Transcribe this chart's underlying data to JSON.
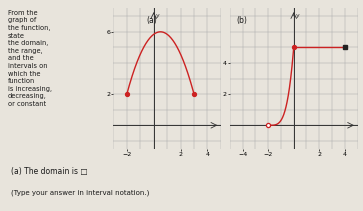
{
  "background_color": "#e8e4dc",
  "text_color": "#1a1a1a",
  "graph_a": {
    "label": "(a)",
    "endpoint_x": [
      -2,
      3
    ],
    "endpoint_y": [
      2,
      2
    ],
    "vertex_x": 0.5,
    "vertex_y": 6.0,
    "xlim": [
      -3,
      5
    ],
    "ylim": [
      -1.5,
      7.5
    ],
    "xticks": [
      -2,
      2,
      4
    ],
    "yticks": [
      2,
      6
    ],
    "color": "#cc2222"
  },
  "graph_b": {
    "label": "(b)",
    "open_point_x": -2,
    "open_point_y": 0,
    "closed_point_x": 4,
    "closed_point_y": 5,
    "flat_y": 5,
    "rise_x_start": -2,
    "rise_x_end": 0,
    "xlim": [
      -5,
      5
    ],
    "ylim": [
      -1.5,
      7.5
    ],
    "xticks": [
      -4,
      -2,
      2,
      4
    ],
    "yticks": [
      2,
      4
    ],
    "color": "#cc2222"
  },
  "left_text_lines": [
    "From the",
    "graph of",
    "the function,",
    "state",
    "the domain,",
    "the range,",
    "and the",
    "intervals on",
    "which the",
    "function",
    "is increasing,",
    "decreasing,",
    "or constant"
  ],
  "bottom_text_line1": "(a) The domain is □",
  "bottom_text_line2": "(Type your answer in interval notation.)"
}
